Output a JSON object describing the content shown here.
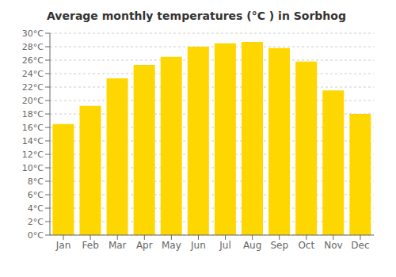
{
  "chart_data": {
    "type": "bar",
    "title": "Average monthly temperatures (°C ) in Sorbhog",
    "categories": [
      "Jan",
      "Feb",
      "Mar",
      "Apr",
      "May",
      "Jun",
      "Jul",
      "Aug",
      "Sep",
      "Oct",
      "Nov",
      "Dec"
    ],
    "values": [
      16.5,
      19.2,
      23.3,
      25.3,
      26.5,
      28.0,
      28.5,
      28.7,
      27.8,
      25.8,
      21.5,
      18.0
    ],
    "color": "#FFD700",
    "ylim": [
      0,
      30
    ],
    "yticks": [
      {
        "value": 0,
        "label": "0°C"
      },
      {
        "value": 2,
        "label": "2°C"
      },
      {
        "value": 4,
        "label": "4°C"
      },
      {
        "value": 6,
        "label": "6°C"
      },
      {
        "value": 8,
        "label": "8°C"
      },
      {
        "value": 10,
        "label": "10°C"
      },
      {
        "value": 12,
        "label": "12°C"
      },
      {
        "value": 14,
        "label": "14°C"
      },
      {
        "value": 16,
        "label": "16°C"
      },
      {
        "value": 18,
        "label": "18°C"
      },
      {
        "value": 20,
        "label": "20°C"
      },
      {
        "value": 22,
        "label": "22°C"
      },
      {
        "value": 24,
        "label": "24°C"
      },
      {
        "value": 26,
        "label": "26°C"
      },
      {
        "value": 28,
        "label": "28°C"
      },
      {
        "value": 30,
        "label": "30°C"
      }
    ],
    "grid": true
  }
}
